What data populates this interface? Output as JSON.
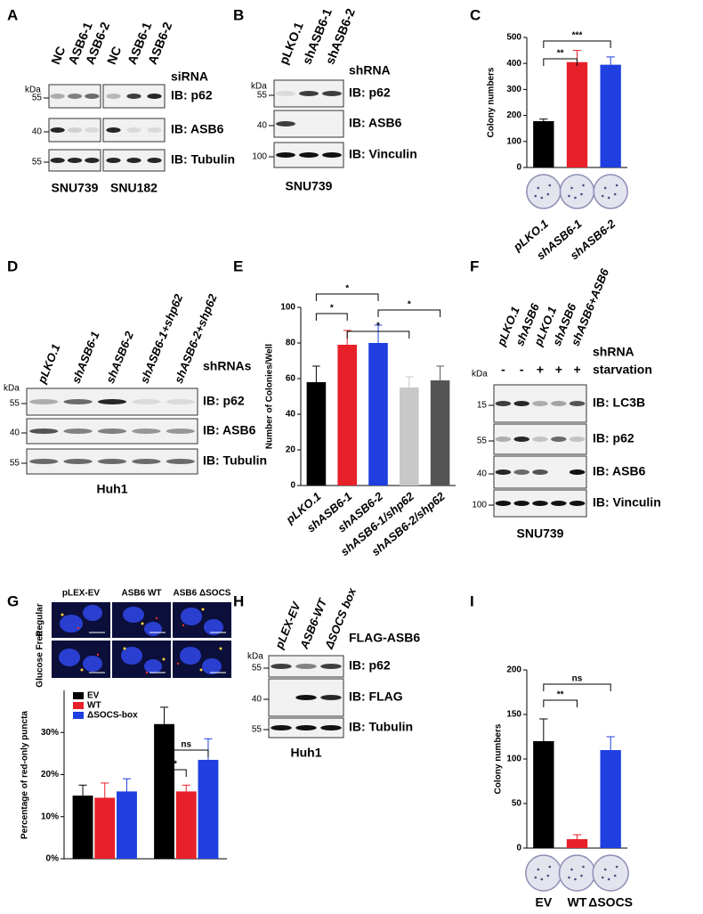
{
  "panels": [
    "A",
    "B",
    "C",
    "D",
    "E",
    "F",
    "G",
    "H",
    "I"
  ],
  "blots": {
    "A": {
      "lanes": [
        "NC",
        "ASB6-1",
        "ASB6-2",
        "NC",
        "ASB6-1",
        "ASB6-2"
      ],
      "treatment": "siRNA",
      "kda": "kDa",
      "markers": [
        55,
        40,
        55
      ],
      "ib": [
        "IB: p62",
        "IB: ASB6",
        "IB: Tubulin"
      ],
      "cell_lines": [
        "SNU739",
        "SNU182"
      ]
    },
    "B": {
      "lanes": [
        "pLKO.1",
        "shASB6-1",
        "shASB6-2"
      ],
      "treatment": "shRNA",
      "kda": "kDa",
      "markers": [
        55,
        40,
        100
      ],
      "ib": [
        "IB: p62",
        "IB: ASB6",
        "IB: Vinculin"
      ],
      "cell_lines": [
        "SNU739"
      ]
    },
    "D": {
      "lanes": [
        "pLKO.1",
        "shASB6-1",
        "shASB6-2",
        "shASB6-1+shp62",
        "shASB6-2+shp62"
      ],
      "treatment": "shRNAs",
      "kda": "kDa",
      "markers": [
        55,
        40,
        55
      ],
      "ib": [
        "IB: p62",
        "IB: ASB6",
        "IB: Tubulin"
      ],
      "cell_lines": [
        "Huh1"
      ]
    },
    "F": {
      "lanes": [
        "pLKO.1",
        "shASB6",
        "pLKO.1",
        "shASB6",
        "shASB6+ASB6"
      ],
      "treatment": "shRNA",
      "starvation": [
        "-",
        "-",
        "+",
        "+",
        "+"
      ],
      "starvation_label": "starvation",
      "kda": "kDa",
      "markers": [
        15,
        55,
        40,
        100
      ],
      "ib": [
        "IB: LC3B",
        "IB: p62",
        "IB: ASB6",
        "IB: Vinculin"
      ],
      "cell_lines": [
        "SNU739"
      ]
    },
    "H": {
      "lanes": [
        "pLEX-EV",
        "ASB6-WT",
        "ΔSOCS box"
      ],
      "treatment": "FLAG-ASB6",
      "kda": "kDa",
      "markers": [
        55,
        40,
        55
      ],
      "ib": [
        "IB: p62",
        "IB: FLAG",
        "IB: Tubulin"
      ],
      "cell_lines": [
        "Huh1"
      ]
    }
  },
  "images": {
    "columns": [
      "pLEX-EV",
      "ASB6 WT",
      "ASB6 ΔSOCS"
    ],
    "rows": [
      "Regular",
      "Glucose Free"
    ]
  },
  "chart_data": [
    {
      "type": "bar",
      "ylabel": "Colony numbers",
      "categories": [
        "pLKO.1",
        "shASB6-1",
        "shASB6-2"
      ],
      "values": [
        178,
        405,
        395
      ],
      "errors": [
        8,
        45,
        30
      ],
      "colors": [
        "#000000",
        "#e8202a",
        "#1f3fe0"
      ],
      "ylim": [
        0,
        500
      ],
      "yticks": [
        0,
        100,
        200,
        300,
        400,
        500
      ],
      "annotations": [
        "**",
        "***"
      ]
    },
    {
      "type": "bar",
      "ylabel": "Number of Colonies/Well",
      "categories": [
        "pLKO.1",
        "shASB6-1",
        "shASB6-2",
        "shASB6-1/shp62",
        "shASB6-2/shp62"
      ],
      "values": [
        58,
        79,
        80,
        55,
        59
      ],
      "errors": [
        9,
        8,
        10,
        6,
        8
      ],
      "colors": [
        "#000000",
        "#e8202a",
        "#1f3fe0",
        "#c8c8c8",
        "#555555"
      ],
      "ylim": [
        0,
        100
      ],
      "yticks": [
        0,
        20,
        40,
        60,
        80,
        100
      ],
      "annotations": [
        "*",
        "*",
        "*",
        "*"
      ]
    },
    {
      "type": "grouped-bar",
      "ylabel": "Percentage of red-only puncta",
      "categories": [
        null,
        null
      ],
      "series": [
        {
          "name": "EV",
          "color": "#000000",
          "values": [
            15,
            32
          ],
          "errors": [
            2.5,
            4
          ]
        },
        {
          "name": "WT",
          "color": "#e8202a",
          "values": [
            14.5,
            16
          ],
          "errors": [
            3.5,
            1.5
          ]
        },
        {
          "name": "ΔSOCS-box",
          "color": "#1f3fe0",
          "values": [
            16,
            23.5
          ],
          "errors": [
            3,
            5
          ]
        }
      ],
      "ylim": [
        0,
        40
      ],
      "yticks": [
        {
          "value": 0,
          "label": "0%"
        },
        {
          "value": 10,
          "label": "10%"
        },
        {
          "value": 20,
          "label": "20%"
        },
        {
          "value": 30,
          "label": "30%"
        }
      ],
      "legend": "top-left",
      "annotations": [
        "*",
        "ns"
      ]
    },
    {
      "type": "bar",
      "ylabel": "Colony numbers",
      "categories": [
        "EV",
        "WT",
        "ΔSOCS"
      ],
      "values": [
        120,
        10,
        110
      ],
      "errors": [
        25,
        5,
        15
      ],
      "colors": [
        "#000000",
        "#e8202a",
        "#1f3fe0"
      ],
      "ylim": [
        0,
        200
      ],
      "yticks": [
        0,
        50,
        100,
        150,
        200
      ],
      "annotations": [
        "**",
        "ns"
      ]
    }
  ]
}
